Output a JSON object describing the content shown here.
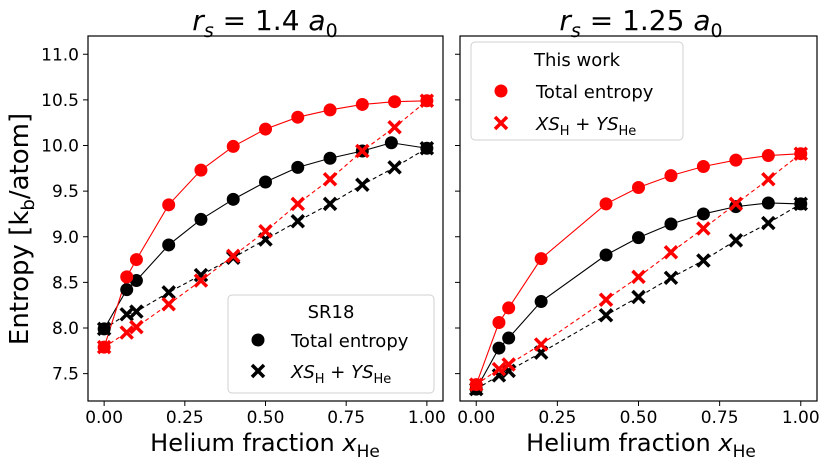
{
  "figure": {
    "ylabel_main": "Entropy [k",
    "ylabel_sub": "b",
    "ylabel_tail": "/atom]"
  },
  "colors": {
    "black": "#000000",
    "red": "#ff0000"
  },
  "chart_data": [
    {
      "type": "scatter",
      "title": "r_s = 1.4 a_0",
      "title_parts": {
        "r": "r",
        "s": "s",
        "eq": " = 1.4 ",
        "a": "a",
        "zero": "0"
      },
      "xlabel_main": "Helium fraction ",
      "xlabel_var": "x",
      "xlabel_sub": "He",
      "xlim": [
        -0.05,
        1.05
      ],
      "ylim": [
        7.2,
        11.2
      ],
      "xticks": [
        "0.00",
        "0.25",
        "0.50",
        "0.75",
        "1.00"
      ],
      "xtick_values": [
        0,
        0.25,
        0.5,
        0.75,
        1.0
      ],
      "yticks": [
        "7.5",
        "8.0",
        "8.5",
        "9.0",
        "9.5",
        "10.0",
        "10.5",
        "11.0"
      ],
      "ytick_values": [
        7.5,
        8.0,
        8.5,
        9.0,
        9.5,
        10.0,
        10.5,
        11.0
      ],
      "show_yticklabels": true,
      "legend": {
        "title": "SR18",
        "placement": "lower-right",
        "entries": [
          {
            "label": "Total entropy",
            "marker": "circle",
            "color": "#000000"
          },
          {
            "label_parts": {
              "X": "XS",
              "H": "H",
              "plus": " + ",
              "Y": "YS",
              "He": "He"
            },
            "marker": "x",
            "color": "#000000"
          }
        ]
      },
      "series": [
        {
          "name": "SR18 Total entropy",
          "marker": "circle",
          "color": "#000000",
          "line": "solid",
          "x": [
            0.0,
            0.07,
            0.1,
            0.2,
            0.3,
            0.4,
            0.5,
            0.6,
            0.7,
            0.8,
            0.89,
            1.0
          ],
          "y": [
            7.99,
            8.42,
            8.52,
            8.91,
            9.19,
            9.41,
            9.6,
            9.76,
            9.86,
            9.94,
            10.03,
            9.97
          ]
        },
        {
          "name": "SR18 XS_H + YS_He",
          "marker": "x",
          "color": "#000000",
          "line": "dashed",
          "x": [
            0.0,
            0.07,
            0.1,
            0.2,
            0.3,
            0.4,
            0.5,
            0.6,
            0.7,
            0.8,
            0.9,
            1.0
          ],
          "y": [
            7.99,
            8.15,
            8.18,
            8.39,
            8.58,
            8.77,
            8.97,
            9.17,
            9.36,
            9.57,
            9.76,
            9.97
          ]
        },
        {
          "name": "This work Total entropy",
          "marker": "circle",
          "color": "#ff0000",
          "line": "solid",
          "x": [
            0.0,
            0.07,
            0.1,
            0.2,
            0.3,
            0.4,
            0.5,
            0.6,
            0.7,
            0.8,
            0.9,
            1.0
          ],
          "y": [
            7.79,
            8.56,
            8.75,
            9.35,
            9.73,
            9.99,
            10.18,
            10.31,
            10.39,
            10.45,
            10.48,
            10.49
          ]
        },
        {
          "name": "This work XS_H + YS_He",
          "marker": "x",
          "color": "#ff0000",
          "line": "dashed",
          "x": [
            0.0,
            0.07,
            0.1,
            0.2,
            0.3,
            0.4,
            0.5,
            0.6,
            0.7,
            0.8,
            0.9,
            1.0
          ],
          "y": [
            7.79,
            7.95,
            8.01,
            8.26,
            8.52,
            8.79,
            9.06,
            9.36,
            9.63,
            9.94,
            10.2,
            10.49
          ]
        }
      ]
    },
    {
      "type": "scatter",
      "title": "r_s = 1.25 a_0",
      "title_parts": {
        "r": "r",
        "s": "s",
        "eq": " = 1.25 ",
        "a": "a",
        "zero": "0"
      },
      "xlabel_main": "Helium fraction ",
      "xlabel_var": "x",
      "xlabel_sub": "He",
      "xlim": [
        -0.05,
        1.05
      ],
      "ylim": [
        7.2,
        11.2
      ],
      "xticks": [
        "0.00",
        "0.25",
        "0.50",
        "0.75",
        "1.00"
      ],
      "xtick_values": [
        0,
        0.25,
        0.5,
        0.75,
        1.0
      ],
      "yticks": [],
      "ytick_values": [
        7.5,
        8.0,
        8.5,
        9.0,
        9.5,
        10.0,
        10.5,
        11.0
      ],
      "show_yticklabels": false,
      "legend": {
        "title": "This work",
        "placement": "upper-left",
        "entries": [
          {
            "label": "Total entropy",
            "marker": "circle",
            "color": "#ff0000"
          },
          {
            "label_parts": {
              "X": "XS",
              "H": "H",
              "plus": " + ",
              "Y": "YS",
              "He": "He"
            },
            "marker": "x",
            "color": "#ff0000"
          }
        ]
      },
      "series": [
        {
          "name": "SR18 Total entropy",
          "marker": "circle",
          "color": "#000000",
          "line": "solid",
          "x": [
            0.0,
            0.07,
            0.1,
            0.2,
            0.4,
            0.5,
            0.6,
            0.7,
            0.8,
            0.9,
            1.0
          ],
          "y": [
            7.33,
            7.78,
            7.89,
            8.29,
            8.8,
            8.99,
            9.14,
            9.25,
            9.33,
            9.37,
            9.36
          ]
        },
        {
          "name": "SR18 XS_H + YS_He",
          "marker": "x",
          "color": "#000000",
          "line": "dashed",
          "x": [
            0.0,
            0.07,
            0.1,
            0.2,
            0.4,
            0.5,
            0.6,
            0.7,
            0.8,
            0.9,
            1.0
          ],
          "y": [
            7.33,
            7.48,
            7.53,
            7.73,
            8.14,
            8.34,
            8.55,
            8.74,
            8.96,
            9.15,
            9.36
          ]
        },
        {
          "name": "This work Total entropy",
          "marker": "circle",
          "color": "#ff0000",
          "line": "solid",
          "x": [
            0.0,
            0.07,
            0.1,
            0.2,
            0.4,
            0.5,
            0.6,
            0.7,
            0.8,
            0.9,
            1.0
          ],
          "y": [
            7.38,
            8.06,
            8.22,
            8.76,
            9.36,
            9.54,
            9.67,
            9.77,
            9.84,
            9.89,
            9.91
          ]
        },
        {
          "name": "This work XS_H + YS_He",
          "marker": "x",
          "color": "#ff0000",
          "line": "dashed",
          "x": [
            0.0,
            0.07,
            0.1,
            0.2,
            0.4,
            0.5,
            0.6,
            0.7,
            0.8,
            0.9,
            1.0
          ],
          "y": [
            7.38,
            7.55,
            7.6,
            7.82,
            8.31,
            8.56,
            8.83,
            9.09,
            9.36,
            9.63,
            9.91
          ]
        }
      ]
    }
  ]
}
